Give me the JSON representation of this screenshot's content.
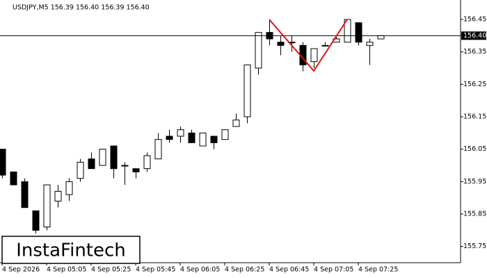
{
  "chart_data": {
    "type": "candlestick",
    "title": "USDJPY,M5  156.39 156.40 156.39 156.40",
    "brand": "InstaFintech",
    "categories": [
      "4 Sep 2026",
      null,
      null,
      null,
      "4 Sep 05:05",
      null,
      null,
      null,
      "4 Sep 05:25",
      null,
      null,
      null,
      "4 Sep 05:45",
      null,
      null,
      null,
      "4 Sep 06:05",
      null,
      null,
      null,
      "4 Sep 06:25",
      null,
      null,
      null,
      "4 Sep 06:45",
      null,
      null,
      null,
      "4 Sep 07:05",
      null,
      null,
      null,
      "4 Sep 07:25",
      null,
      null
    ],
    "open": [
      156.05,
      155.98,
      155.95,
      155.86,
      155.81,
      155.89,
      155.91,
      155.96,
      156.02,
      156.0,
      156.06,
      156.0,
      155.99,
      155.99,
      156.02,
      156.09,
      156.09,
      156.1,
      156.06,
      156.09,
      156.08,
      156.12,
      156.15,
      156.3,
      156.41,
      156.38,
      156.38,
      156.37,
      156.32,
      156.37,
      156.38,
      156.38,
      156.44,
      156.37,
      156.39
    ],
    "high": [
      156.05,
      155.98,
      155.96,
      155.86,
      155.94,
      155.94,
      155.96,
      156.02,
      156.04,
      156.05,
      156.06,
      156.01,
      155.99,
      156.04,
      156.1,
      156.11,
      156.12,
      156.11,
      156.1,
      156.09,
      156.11,
      156.16,
      156.31,
      156.41,
      156.45,
      156.4,
      156.4,
      156.38,
      156.36,
      156.38,
      156.4,
      156.45,
      156.44,
      156.39,
      156.4
    ],
    "low": [
      155.96,
      155.94,
      155.87,
      155.79,
      155.8,
      155.87,
      155.89,
      155.95,
      155.99,
      156.0,
      155.96,
      155.94,
      155.96,
      155.98,
      156.02,
      156.07,
      156.07,
      156.07,
      156.06,
      156.05,
      156.08,
      156.12,
      156.13,
      156.28,
      156.37,
      156.34,
      156.35,
      156.29,
      156.3,
      156.37,
      156.38,
      156.38,
      156.37,
      156.31,
      156.39
    ],
    "close": [
      155.97,
      155.94,
      155.87,
      155.8,
      155.94,
      155.92,
      155.95,
      156.01,
      155.99,
      156.05,
      155.99,
      156.0,
      155.98,
      156.03,
      156.08,
      156.08,
      156.11,
      156.07,
      156.1,
      156.07,
      156.11,
      156.14,
      156.31,
      156.41,
      156.39,
      156.37,
      156.38,
      156.31,
      156.36,
      156.37,
      156.39,
      156.45,
      156.38,
      156.38,
      156.4
    ],
    "up_color": "#ffffff",
    "down_color": "#000000",
    "pattern_color": "#e01010",
    "current_price": {
      "value": 156.4,
      "label": "156.40"
    },
    "ylim": [
      155.7,
      156.51
    ],
    "yticks": [
      155.75,
      155.85,
      155.95,
      156.05,
      156.15,
      156.25,
      156.35,
      156.45
    ]
  }
}
